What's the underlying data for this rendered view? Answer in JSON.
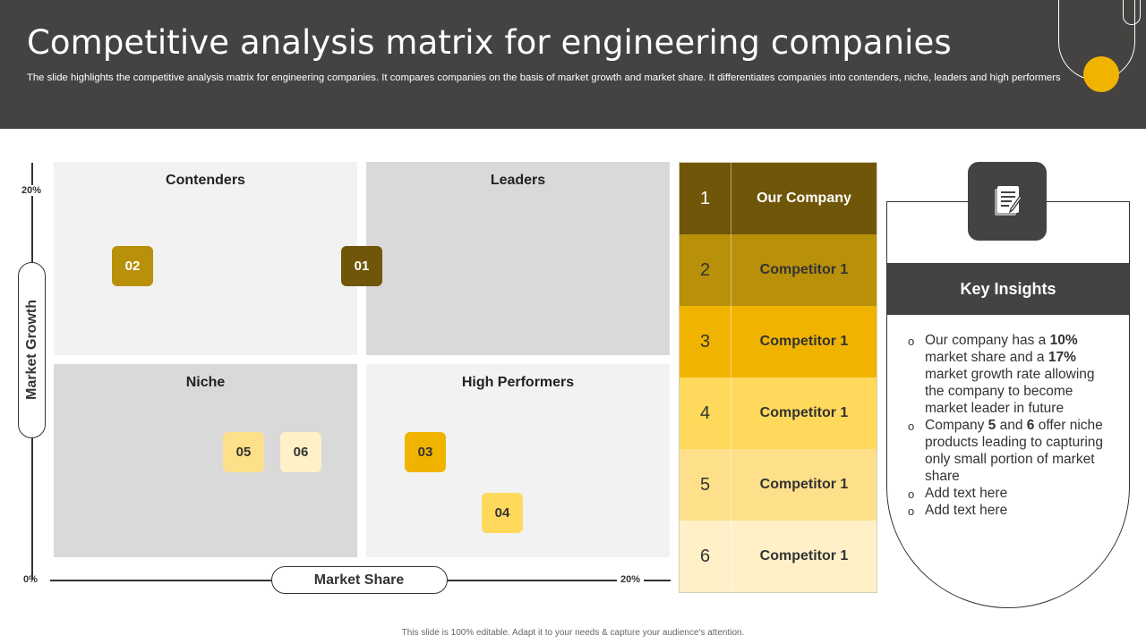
{
  "header": {
    "title": "Competitive analysis matrix for engineering companies",
    "subtitle": "The slide highlights the competitive analysis matrix for engineering companies. It compares companies on the basis of market growth and market share. It differentiates companies into contenders, niche, leaders and high performers"
  },
  "axes": {
    "y_label": "Market Growth",
    "x_label": "Market Share",
    "y_max": "20%",
    "origin": "0%",
    "x_max": "20%"
  },
  "quadrants": {
    "top_left": "Contenders",
    "top_right": "Leaders",
    "bottom_left": "Niche",
    "bottom_right": "High Performers"
  },
  "markers": [
    {
      "label": "02",
      "color": "#b8900a"
    },
    {
      "label": "01",
      "color": "#6f5608"
    },
    {
      "label": "05",
      "color": "#ffe08a"
    },
    {
      "label": "06",
      "color": "#fff0c8"
    },
    {
      "label": "03",
      "color": "#f0b400"
    },
    {
      "label": "04",
      "color": "#ffd95c"
    }
  ],
  "ranking": [
    {
      "rank": "1",
      "name": "Our Company",
      "color": "#6f5608"
    },
    {
      "rank": "2",
      "name": "Competitor 1",
      "color": "#b8900a"
    },
    {
      "rank": "3",
      "name": "Competitor 1",
      "color": "#f0b400"
    },
    {
      "rank": "4",
      "name": "Competitor 1",
      "color": "#ffd95c"
    },
    {
      "rank": "5",
      "name": "Competitor 1",
      "color": "#ffe08a"
    },
    {
      "rank": "6",
      "name": "Competitor 1",
      "color": "#fff0c8"
    }
  ],
  "insights": {
    "title": "Key Insights",
    "icon": "notes-icon",
    "items": [
      {
        "parts": [
          {
            "text": "Our company has a ",
            "bold": false
          },
          {
            "text": "10%",
            "bold": true
          },
          {
            "text": " market share and a ",
            "bold": false
          },
          {
            "text": "17%",
            "bold": true
          },
          {
            "text": " market growth rate allowing the company to become market leader in future",
            "bold": false
          }
        ]
      },
      {
        "parts": [
          {
            "text": "Company ",
            "bold": false
          },
          {
            "text": "5",
            "bold": true
          },
          {
            "text": " and ",
            "bold": false
          },
          {
            "text": "6",
            "bold": true
          },
          {
            "text": " offer niche products leading to capturing only small portion of market share",
            "bold": false
          }
        ]
      },
      {
        "parts": [
          {
            "text": "Add text here",
            "bold": false
          }
        ]
      },
      {
        "parts": [
          {
            "text": "Add text here",
            "bold": false
          }
        ]
      }
    ]
  },
  "footer": "This slide is 100% editable.  Adapt it to your needs & capture your audience's attention."
}
